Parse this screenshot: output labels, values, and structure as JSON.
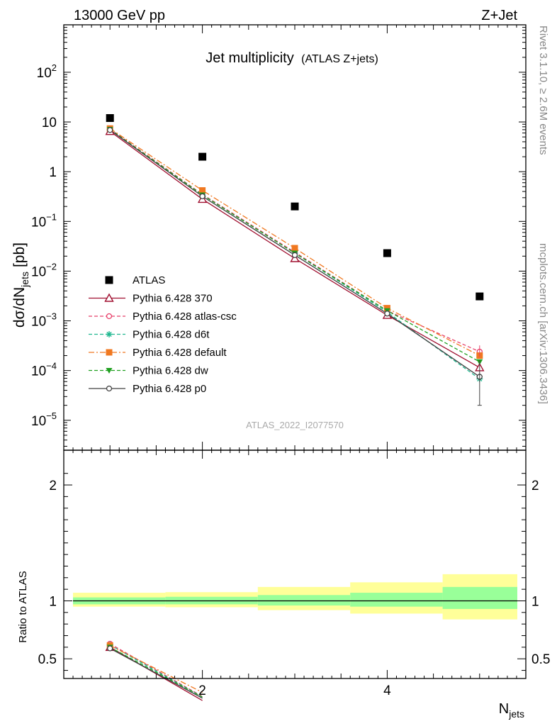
{
  "header": {
    "left": "13000 GeV pp",
    "right": "Z+Jet"
  },
  "side_labels": {
    "rivet": "Rivet 3.1.10, ≥ 2.6M events",
    "mcplots": "mcplots.cern.ch [arXiv:1306.3436]"
  },
  "analysis_label": "ATLAS_2022_I2077570",
  "chart_data": [
    {
      "type": "scatter",
      "title": "Jet multiplicity",
      "subtitle": "(ATLAS Z+jets)",
      "ylabel": "dσ/dN",
      "ylabel_sub": "jets",
      "ylabel_unit": "[pb]",
      "yscale": "log",
      "xlim": [
        0.5,
        5.5
      ],
      "ylim": [
        2.5e-06,
        900
      ],
      "legend_position": "lower-left",
      "y_tick_labels": [
        {
          "base": "10",
          "exp": "−5"
        },
        {
          "base": "10",
          "exp": "−4"
        },
        {
          "base": "10",
          "exp": "−3"
        },
        {
          "base": "10",
          "exp": "−2"
        },
        {
          "base": "10",
          "exp": "−1"
        },
        {
          "base": "1",
          "exp": ""
        },
        {
          "base": "10",
          "exp": ""
        },
        {
          "base": "10",
          "exp": "2"
        }
      ],
      "x": [
        1,
        2,
        3,
        4,
        5
      ],
      "series": [
        {
          "name": "ATLAS",
          "color": "#000000",
          "marker": "square",
          "line": "none",
          "values": [
            12,
            2.0,
            0.2,
            0.023,
            0.0031
          ]
        },
        {
          "name": "Pythia 6.428 370",
          "color": "#a01030",
          "marker": "triangle-open",
          "line": "solid",
          "values": [
            6.5,
            0.28,
            0.018,
            0.0013,
            0.000115
          ]
        },
        {
          "name": "Pythia 6.428 atlas-csc",
          "color": "#e8406a",
          "marker": "circle-open",
          "line": "dashed",
          "values": [
            7.2,
            0.35,
            0.024,
            0.0016,
            0.00024
          ]
        },
        {
          "name": "Pythia 6.428 d6t",
          "color": "#20b890",
          "marker": "star",
          "line": "dashed",
          "values": [
            7.0,
            0.34,
            0.023,
            0.0015,
            6.8e-05
          ]
        },
        {
          "name": "Pythia 6.428 default",
          "color": "#f07820",
          "marker": "square",
          "line": "dashdot",
          "values": [
            7.4,
            0.42,
            0.029,
            0.0018,
            0.0002
          ]
        },
        {
          "name": "Pythia 6.428 dw",
          "color": "#20a020",
          "marker": "triangle-down",
          "line": "dashed",
          "values": [
            7.1,
            0.34,
            0.023,
            0.0016,
            0.00015
          ]
        },
        {
          "name": "Pythia 6.428 p0",
          "color": "#404040",
          "marker": "circle-open",
          "line": "solid",
          "values": [
            6.9,
            0.32,
            0.021,
            0.0014,
            7.5e-05
          ]
        }
      ]
    },
    {
      "type": "line",
      "ylabel": "Ratio to ATLAS",
      "xlabel": "N",
      "xlabel_sub": "jets",
      "xlim": [
        0.5,
        5.5
      ],
      "ylim": [
        0.33,
        2.3
      ],
      "x_tick_labels": [
        "2",
        "4"
      ],
      "y_tick_labels": [
        "0.5",
        "1",
        "2"
      ],
      "bins": [
        [
          0.5,
          1.5
        ],
        [
          1.5,
          2.5
        ],
        [
          2.5,
          3.5
        ],
        [
          3.5,
          4.5
        ],
        [
          4.5,
          5.5
        ]
      ],
      "band_inner": [
        [
          0.97,
          1.03
        ],
        [
          0.97,
          1.035
        ],
        [
          0.96,
          1.05
        ],
        [
          0.95,
          1.07
        ],
        [
          0.93,
          1.12
        ]
      ],
      "band_outer": [
        [
          0.95,
          1.07
        ],
        [
          0.945,
          1.075
        ],
        [
          0.92,
          1.12
        ],
        [
          0.89,
          1.16
        ],
        [
          0.84,
          1.23
        ]
      ],
      "x": [
        1,
        2
      ],
      "series": [
        {
          "name": "Pythia 6.428 370",
          "values": [
            0.6,
            0.14
          ]
        },
        {
          "name": "Pythia 6.428 atlas-csc",
          "values": [
            0.63,
            0.175
          ]
        },
        {
          "name": "Pythia 6.428 d6t",
          "values": [
            0.62,
            0.17
          ]
        },
        {
          "name": "Pythia 6.428 default",
          "values": [
            0.615,
            0.21
          ]
        },
        {
          "name": "Pythia 6.428 dw",
          "values": [
            0.6,
            0.17
          ]
        },
        {
          "name": "Pythia 6.428 p0",
          "values": [
            0.59,
            0.16
          ]
        }
      ]
    }
  ]
}
